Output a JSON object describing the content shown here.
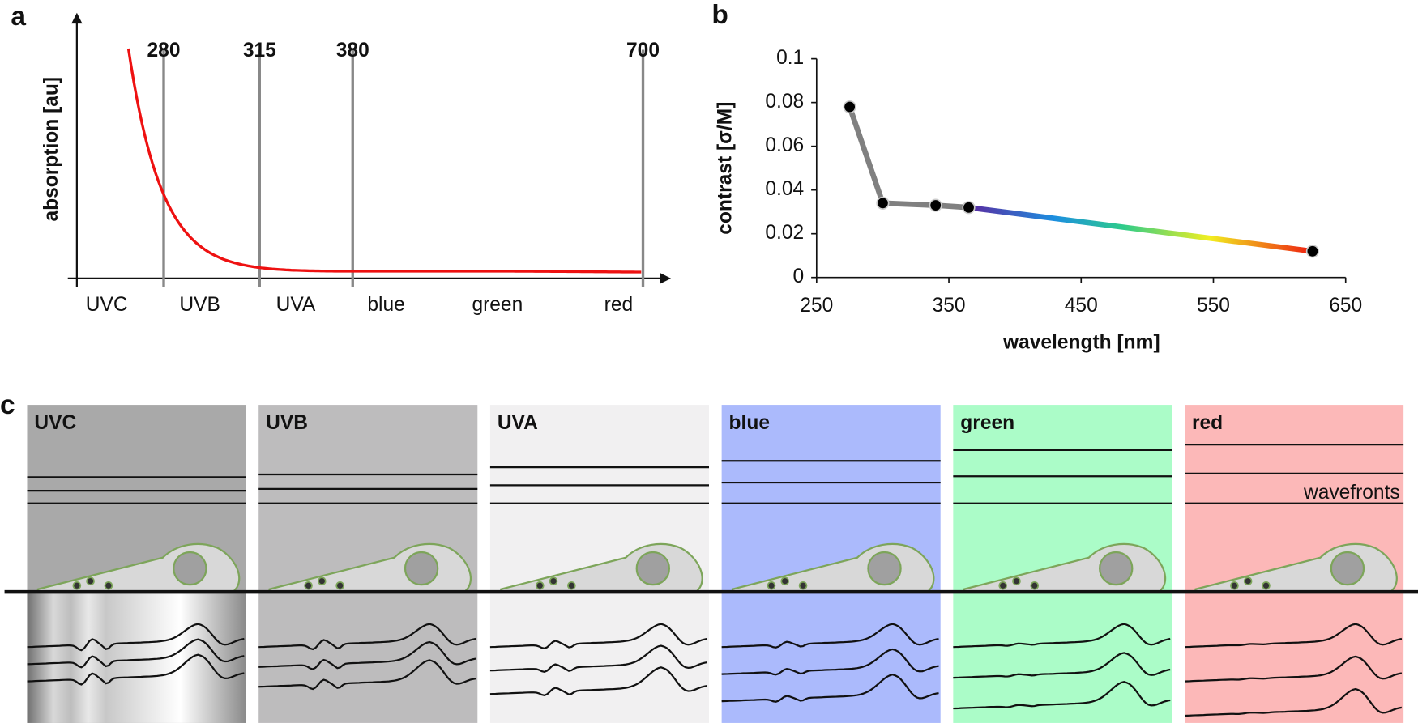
{
  "panel_a": {
    "letter": "a",
    "ylabel": "absorption [au]",
    "marks": [
      "280",
      "315",
      "380",
      "700"
    ],
    "bands": [
      "UVC",
      "UVB",
      "UVA",
      "blue",
      "green",
      "red"
    ]
  },
  "chart_data": {
    "type": "line",
    "letter": "b",
    "xlabel": "wavelength [nm]",
    "ylabel": "contrast [σ/M]",
    "x": [
      275,
      300,
      340,
      365,
      625
    ],
    "series": [
      {
        "color": "#808080",
        "values": [
          0.078,
          0.034,
          0.033,
          0.032,
          0.012
        ]
      }
    ],
    "xlim": [
      250,
      650
    ],
    "xticks": [
      250,
      350,
      450,
      550,
      650
    ],
    "ylim": [
      0,
      0.1
    ],
    "yticks": [
      0,
      0.02,
      0.04,
      0.06,
      0.08,
      0.1
    ]
  },
  "panel_c": {
    "letter": "c",
    "boxes": [
      "UVC",
      "UVB",
      "UVA",
      "blue",
      "green",
      "red"
    ],
    "note": "wavefronts"
  }
}
